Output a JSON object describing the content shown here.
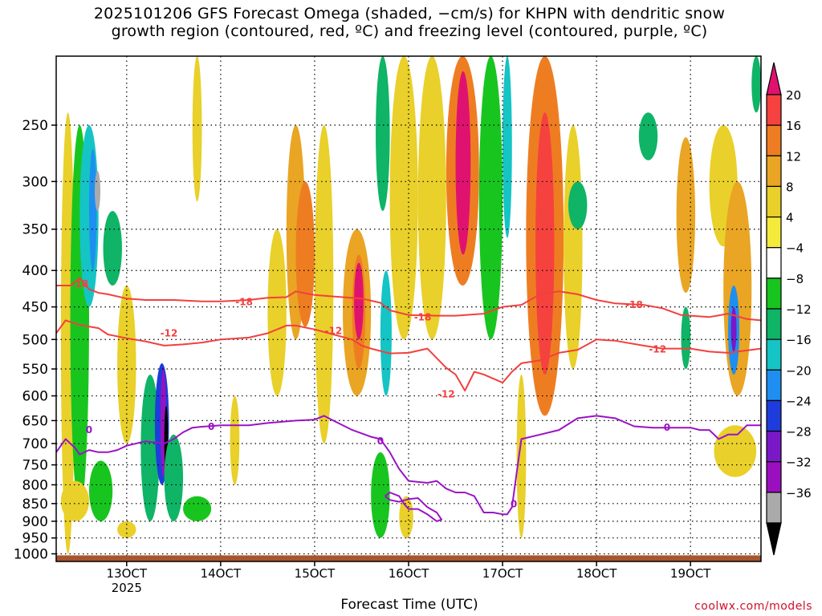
{
  "title_line1": "2025101206 GFS Forecast Omega (shaded, −cm/s) for KHPN with dendritic snow",
  "title_line2": "growth region (contoured, red, ºC) and freezing level (contoured, purple, ºC)",
  "credit": "coolwx.com/models",
  "chart_data": {
    "type": "heatmap",
    "title": "2025101206 GFS Forecast Omega (shaded, −cm/s) for KHPN with dendritic snow growth region (contoured, red, ºC) and freezing level (contoured, purple, ºC)",
    "xlabel": "Forecast Time (UTC)",
    "ylabel": "",
    "xlim": [
      122.5,
      197.5
    ],
    "ylim": [
      1025,
      200
    ],
    "y_scale": "log",
    "grid": true,
    "x_ticks": [
      {
        "value": 130,
        "label": "13OCT",
        "sublabel": "2025"
      },
      {
        "value": 140,
        "label": "14OCT"
      },
      {
        "value": 150,
        "label": "15OCT"
      },
      {
        "value": 160,
        "label": "16OCT"
      },
      {
        "value": 170,
        "label": "17OCT"
      },
      {
        "value": 180,
        "label": "18OCT"
      },
      {
        "value": 190,
        "label": "19OCT"
      }
    ],
    "y_ticks": [
      250,
      300,
      350,
      400,
      450,
      500,
      550,
      600,
      650,
      700,
      750,
      800,
      850,
      900,
      950,
      1000
    ],
    "colorbar": {
      "labels": [
        "20",
        "16",
        "12",
        "8",
        "4",
        "−4",
        "−8",
        "−12",
        "−16",
        "−20",
        "−24",
        "−28",
        "−32",
        "−36"
      ],
      "colors": [
        "#e0126f",
        "#f5423f",
        "#ee7d22",
        "#e9a523",
        "#e9d02a",
        "#f3ea3c",
        "#ffffff",
        "#18c51f",
        "#0fb466",
        "#15c4c4",
        "#1e8ff0",
        "#1e3cdc",
        "#7a18c8",
        "#9a10c0",
        "#aaaaaa",
        "#000000"
      ]
    },
    "surface_color": "#a8552e",
    "contours": [
      {
        "label": "-18",
        "color": "#f2403f",
        "x": [
          122.5,
          124,
          125,
          126,
          127,
          128,
          130,
          132,
          135,
          138,
          140,
          143,
          145,
          147,
          148,
          150,
          152,
          155,
          157,
          158,
          160,
          163,
          165,
          168,
          170,
          172,
          174,
          176,
          178,
          180,
          182,
          185,
          187,
          189,
          190,
          192,
          194,
          196,
          197.5
        ],
        "y": [
          420,
          420,
          410,
          425,
          430,
          432,
          438,
          440,
          440,
          442,
          442,
          440,
          437,
          436,
          428,
          433,
          435,
          438,
          444,
          455,
          462,
          463,
          463,
          460,
          450,
          447,
          432,
          428,
          432,
          440,
          445,
          447,
          452,
          462,
          463,
          465,
          460,
          468,
          470
        ]
      },
      {
        "label": "-12",
        "color": "#f2403f",
        "x": [
          122.5,
          123.5,
          125,
          127,
          128,
          130,
          132,
          134,
          136,
          138,
          140,
          143,
          145,
          147,
          148,
          150,
          152,
          154,
          155,
          156,
          158,
          160,
          162,
          164,
          165,
          166,
          167,
          168,
          170,
          171,
          172,
          174,
          176,
          178,
          180,
          182,
          185,
          187,
          190,
          192,
          194,
          196,
          197.5
        ],
        "y": [
          490,
          470,
          477,
          482,
          492,
          498,
          503,
          510,
          508,
          505,
          500,
          497,
          490,
          478,
          478,
          484,
          492,
          500,
          510,
          515,
          523,
          522,
          515,
          548,
          560,
          590,
          555,
          560,
          575,
          555,
          540,
          535,
          522,
          517,
          500,
          502,
          510,
          515,
          515,
          520,
          522,
          518,
          515
        ]
      },
      {
        "label": "0",
        "color": "#9b12c6",
        "x": [
          122.5,
          123.5,
          124.5,
          125,
          126,
          127,
          128,
          129,
          130,
          132,
          134,
          135,
          136,
          137,
          138,
          140,
          143,
          145,
          148,
          150,
          151,
          152,
          154,
          156,
          157,
          158,
          158.5,
          159,
          160,
          162,
          163,
          164,
          165,
          166,
          167,
          168,
          169,
          170,
          170.5,
          171,
          171.5,
          172,
          174,
          176,
          178,
          180,
          182,
          184,
          186,
          188,
          190,
          191,
          192,
          193,
          194,
          195,
          196,
          197.5
        ],
        "y": [
          720,
          690,
          710,
          725,
          715,
          720,
          720,
          715,
          705,
          695,
          700,
          690,
          675,
          665,
          663,
          660,
          660,
          655,
          650,
          648,
          640,
          650,
          670,
          685,
          690,
          720,
          740,
          760,
          790,
          795,
          790,
          810,
          820,
          820,
          830,
          875,
          875,
          880,
          880,
          860,
          770,
          690,
          680,
          670,
          645,
          640,
          645,
          662,
          665,
          665,
          665,
          670,
          670,
          690,
          680,
          680,
          660,
          660
        ]
      },
      {
        "label": "",
        "color": "#9b12c6",
        "x": [
          157.5,
          158,
          159,
          160,
          161,
          162,
          163,
          163.5,
          163,
          162,
          161,
          160,
          159.5,
          159,
          158,
          157.5
        ],
        "y": [
          830,
          840,
          845,
          838,
          835,
          860,
          875,
          895,
          900,
          880,
          865,
          865,
          850,
          830,
          820,
          830
        ]
      }
    ],
    "omega_cells": [
      {
        "x": [
          123.0,
          124.5
        ],
        "p": [
          240,
          1000
        ],
        "v": 4
      },
      {
        "x": [
          124.0,
          126.0
        ],
        "p": [
          250,
          870
        ],
        "v": -6
      },
      {
        "x": [
          125.0,
          127.0
        ],
        "p": [
          250,
          450
        ],
        "v": -12
      },
      {
        "x": [
          126.0,
          126.8
        ],
        "p": [
          270,
          400
        ],
        "v": -18
      },
      {
        "x": [
          126.6,
          127.2
        ],
        "p": [
          290,
          330
        ],
        "v": -34
      },
      {
        "x": [
          127.5,
          129.5
        ],
        "p": [
          330,
          420
        ],
        "v": -10
      },
      {
        "x": [
          129.0,
          131.0
        ],
        "p": [
          420,
          700
        ],
        "v": 4
      },
      {
        "x": [
          123.0,
          126.0
        ],
        "p": [
          790,
          900
        ],
        "v": 6
      },
      {
        "x": [
          126.0,
          128.5
        ],
        "p": [
          740,
          900
        ],
        "v": -6
      },
      {
        "x": [
          129.0,
          131.0
        ],
        "p": [
          900,
          950
        ],
        "v": 4
      },
      {
        "x": [
          131.5,
          133.5
        ],
        "p": [
          560,
          900
        ],
        "v": -8
      },
      {
        "x": [
          133.0,
          134.5
        ],
        "p": [
          540,
          800
        ],
        "v": -20
      },
      {
        "x": [
          133.6,
          134.2
        ],
        "p": [
          550,
          780
        ],
        "v": -30
      },
      {
        "x": [
          134.0,
          134.4
        ],
        "p": [
          620,
          770
        ],
        "v": -36
      },
      {
        "x": [
          134.0,
          136.0
        ],
        "p": [
          680,
          900
        ],
        "v": -10
      },
      {
        "x": [
          136.0,
          139.0
        ],
        "p": [
          830,
          900
        ],
        "v": -6
      },
      {
        "x": [
          137.0,
          138.0
        ],
        "p": [
          200,
          320
        ],
        "v": 4
      },
      {
        "x": [
          141.0,
          142.0
        ],
        "p": [
          600,
          800
        ],
        "v": 4
      },
      {
        "x": [
          145.0,
          147.0
        ],
        "p": [
          350,
          600
        ],
        "v": 4
      },
      {
        "x": [
          147.0,
          149.0
        ],
        "p": [
          250,
          500
        ],
        "v": 8
      },
      {
        "x": [
          148.0,
          150.0
        ],
        "p": [
          300,
          480
        ],
        "v": 12
      },
      {
        "x": [
          150.0,
          152.0
        ],
        "p": [
          250,
          700
        ],
        "v": 4
      },
      {
        "x": [
          153.0,
          156.0
        ],
        "p": [
          350,
          600
        ],
        "v": 8
      },
      {
        "x": [
          154.0,
          155.4
        ],
        "p": [
          380,
          550
        ],
        "v": 14
      },
      {
        "x": [
          154.2,
          155.2
        ],
        "p": [
          390,
          500
        ],
        "v": 20
      },
      {
        "x": [
          156.5,
          158.0
        ],
        "p": [
          200,
          330
        ],
        "v": -8
      },
      {
        "x": [
          157.0,
          158.2
        ],
        "p": [
          400,
          600
        ],
        "v": -14
      },
      {
        "x": [
          156.0,
          158.0
        ],
        "p": [
          720,
          950
        ],
        "v": -6
      },
      {
        "x": [
          158.0,
          161.0
        ],
        "p": [
          200,
          500
        ],
        "v": 6
      },
      {
        "x": [
          159.0,
          160.5
        ],
        "p": [
          830,
          950
        ],
        "v": 4
      },
      {
        "x": [
          161.0,
          164.0
        ],
        "p": [
          200,
          500
        ],
        "v": 4
      },
      {
        "x": [
          164.0,
          167.5
        ],
        "p": [
          200,
          420
        ],
        "v": 12
      },
      {
        "x": [
          165.0,
          166.6
        ],
        "p": [
          210,
          380
        ],
        "v": 20
      },
      {
        "x": [
          167.5,
          170.0
        ],
        "p": [
          200,
          500
        ],
        "v": -6
      },
      {
        "x": [
          170.0,
          171.0
        ],
        "p": [
          200,
          360
        ],
        "v": -12
      },
      {
        "x": [
          171.5,
          172.5
        ],
        "p": [
          560,
          950
        ],
        "v": 4
      },
      {
        "x": [
          172.5,
          176.5
        ],
        "p": [
          200,
          640
        ],
        "v": 12
      },
      {
        "x": [
          173.5,
          175.5
        ],
        "p": [
          240,
          560
        ],
        "v": 16
      },
      {
        "x": [
          176.5,
          178.5
        ],
        "p": [
          250,
          550
        ],
        "v": 4
      },
      {
        "x": [
          177.0,
          179.0
        ],
        "p": [
          300,
          350
        ],
        "v": -8
      },
      {
        "x": [
          184.5,
          186.5
        ],
        "p": [
          240,
          280
        ],
        "v": -8
      },
      {
        "x": [
          188.5,
          190.5
        ],
        "p": [
          260,
          430
        ],
        "v": 8
      },
      {
        "x": [
          189.0,
          190.0
        ],
        "p": [
          450,
          550
        ],
        "v": -10
      },
      {
        "x": [
          192.0,
          195.0
        ],
        "p": [
          250,
          370
        ],
        "v": 4
      },
      {
        "x": [
          193.5,
          196.5
        ],
        "p": [
          300,
          600
        ],
        "v": 8
      },
      {
        "x": [
          194.0,
          195.2
        ],
        "p": [
          420,
          560
        ],
        "v": -16
      },
      {
        "x": [
          194.3,
          194.9
        ],
        "p": [
          450,
          520
        ],
        "v": -24
      },
      {
        "x": [
          192.5,
          197.0
        ],
        "p": [
          660,
          780
        ],
        "v": 6
      },
      {
        "x": [
          196.5,
          197.5
        ],
        "p": [
          200,
          240
        ],
        "v": -8
      }
    ]
  }
}
